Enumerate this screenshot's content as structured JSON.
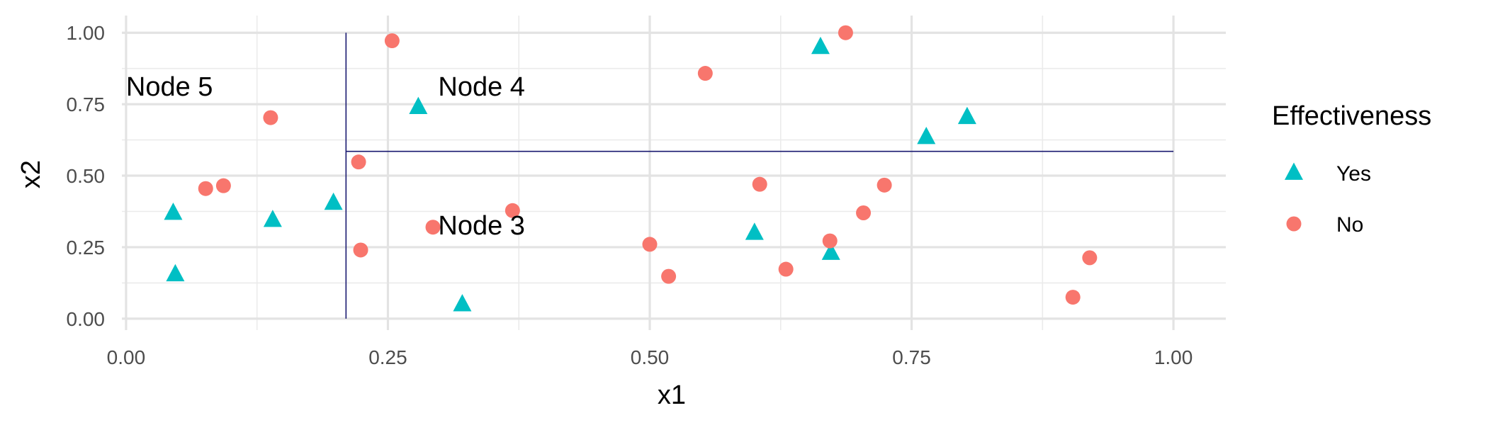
{
  "chart_data": {
    "type": "scatter",
    "xlabel": "x1",
    "ylabel": "x2",
    "xlim": [
      -0.004,
      1.05
    ],
    "ylim": [
      -0.04,
      1.06
    ],
    "x_ticks": [
      0.0,
      0.25,
      0.5,
      0.75,
      1.0
    ],
    "x_tick_labels": [
      "0.00",
      "0.25",
      "0.50",
      "0.75",
      "1.00"
    ],
    "y_ticks": [
      0.0,
      0.25,
      0.5,
      0.75,
      1.0
    ],
    "y_tick_labels": [
      "0.00",
      "0.25",
      "0.50",
      "0.75",
      "1.00"
    ],
    "grid": true,
    "legend": {
      "title": "Effectiveness",
      "position": "right",
      "entries": [
        {
          "label": "Yes",
          "shape": "triangle",
          "color": "#00BFC4"
        },
        {
          "label": "No",
          "shape": "circle",
          "color": "#F8766D"
        }
      ]
    },
    "series": [
      {
        "name": "Yes",
        "shape": "triangle",
        "color": "#00BFC4",
        "points": [
          {
            "x": 0.045,
            "y": 0.37
          },
          {
            "x": 0.047,
            "y": 0.155
          },
          {
            "x": 0.14,
            "y": 0.345
          },
          {
            "x": 0.198,
            "y": 0.405
          },
          {
            "x": 0.279,
            "y": 0.74
          },
          {
            "x": 0.321,
            "y": 0.05
          },
          {
            "x": 0.6,
            "y": 0.3
          },
          {
            "x": 0.663,
            "y": 0.95
          },
          {
            "x": 0.673,
            "y": 0.23
          },
          {
            "x": 0.764,
            "y": 0.635
          },
          {
            "x": 0.803,
            "y": 0.705
          }
        ]
      },
      {
        "name": "No",
        "shape": "circle",
        "color": "#F8766D",
        "points": [
          {
            "x": 0.076,
            "y": 0.455
          },
          {
            "x": 0.093,
            "y": 0.465
          },
          {
            "x": 0.138,
            "y": 0.703
          },
          {
            "x": 0.222,
            "y": 0.548
          },
          {
            "x": 0.224,
            "y": 0.24
          },
          {
            "x": 0.254,
            "y": 0.972
          },
          {
            "x": 0.293,
            "y": 0.32
          },
          {
            "x": 0.369,
            "y": 0.378
          },
          {
            "x": 0.5,
            "y": 0.26
          },
          {
            "x": 0.518,
            "y": 0.148
          },
          {
            "x": 0.553,
            "y": 0.858
          },
          {
            "x": 0.605,
            "y": 0.47
          },
          {
            "x": 0.63,
            "y": 0.173
          },
          {
            "x": 0.672,
            "y": 0.272
          },
          {
            "x": 0.687,
            "y": 1.0
          },
          {
            "x": 0.704,
            "y": 0.37
          },
          {
            "x": 0.724,
            "y": 0.467
          },
          {
            "x": 0.904,
            "y": 0.075
          },
          {
            "x": 0.92,
            "y": 0.213
          }
        ]
      }
    ],
    "splits": [
      {
        "orientation": "vertical",
        "x": 0.21,
        "y_from": 0.0,
        "y_to": 1.0
      },
      {
        "orientation": "horizontal",
        "y": 0.585,
        "x_from": 0.21,
        "x_to": 1.0
      }
    ],
    "annotations": [
      {
        "text": "Node 5",
        "x": 0.0,
        "y": 0.78
      },
      {
        "text": "Node 4",
        "x": 0.298,
        "y": 0.78
      },
      {
        "text": "Node 3",
        "x": 0.298,
        "y": 0.295
      }
    ]
  }
}
